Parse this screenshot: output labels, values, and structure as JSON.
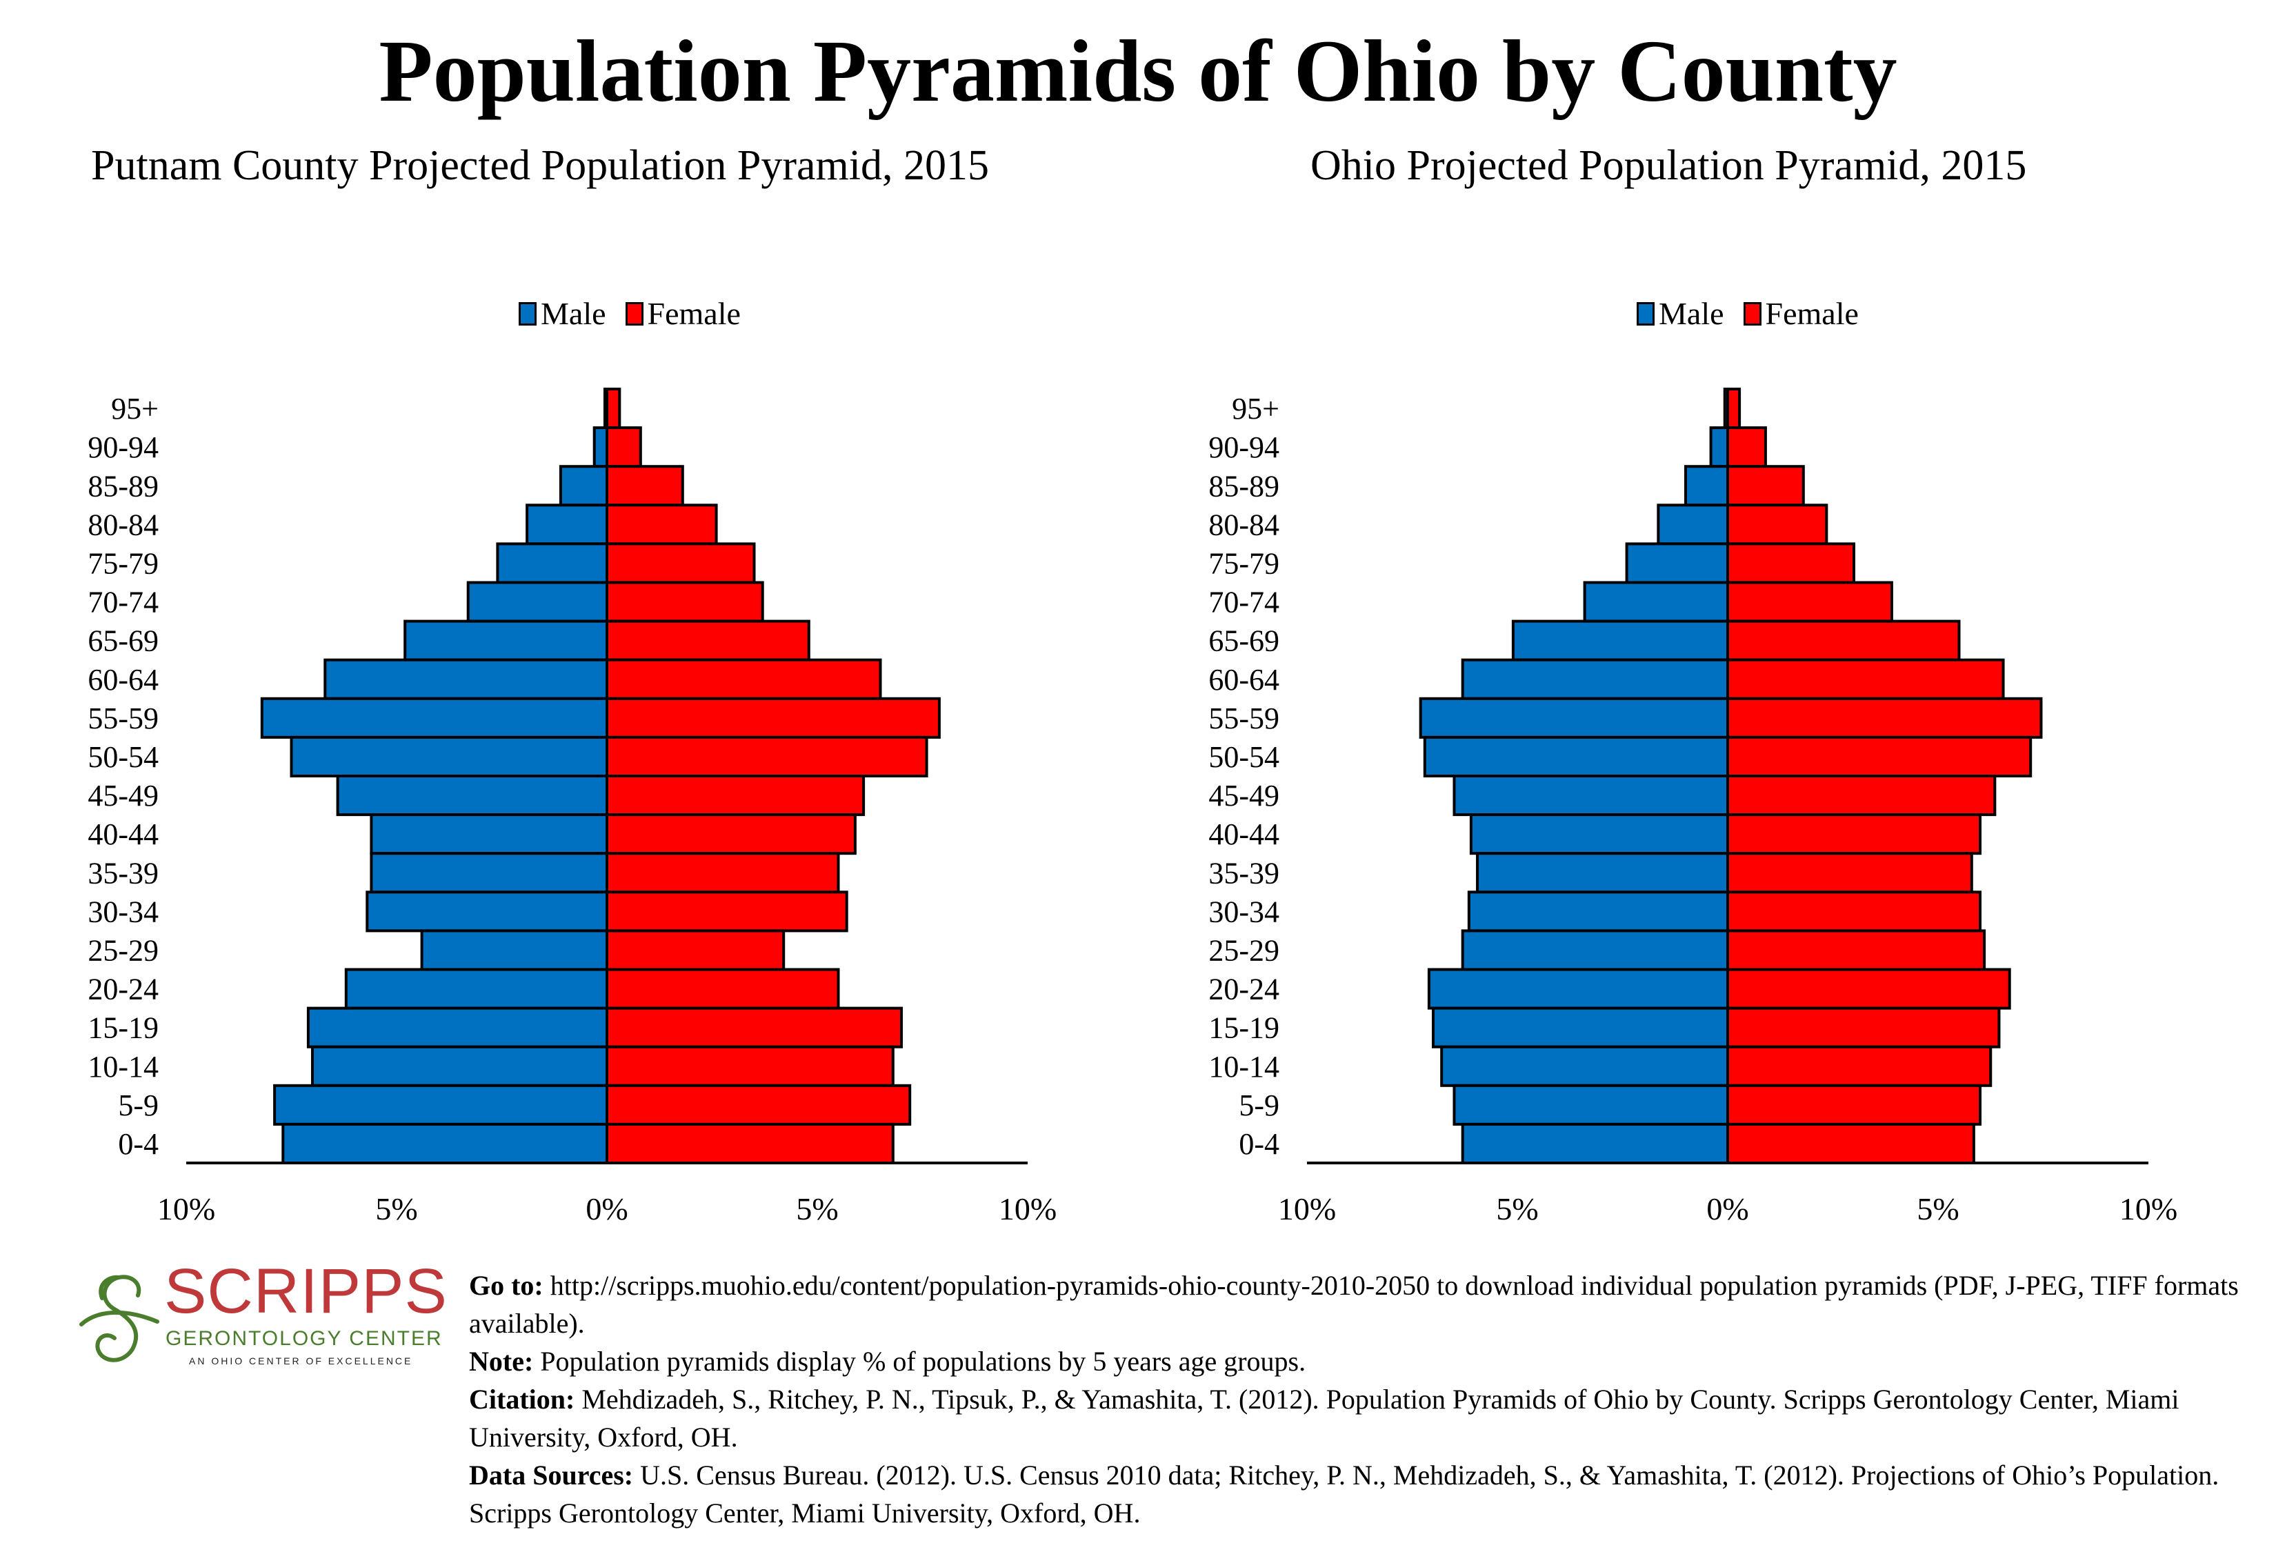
{
  "header": {
    "title": "Population Pyramids of Ohio by County"
  },
  "legend": {
    "male": "Male",
    "female": "Female"
  },
  "colors": {
    "male": "#0070c0",
    "female": "#ff0000",
    "outline": "#000000",
    "logo_red": "#c0393a",
    "logo_green": "#4a7d2c"
  },
  "chart_data": [
    {
      "type": "bar",
      "orientation": "horizontal-pyramid",
      "title": "Putnam County Projected Population Pyramid, 2015",
      "xlabel": "",
      "ylabel": "",
      "xlim": [
        -10,
        10
      ],
      "xticks": [
        "10%",
        "5%",
        "0%",
        "5%",
        "10%"
      ],
      "legend": [
        "Male",
        "Female"
      ],
      "legend_position": "top-center",
      "grid": false,
      "categories": [
        "95+",
        "90-94",
        "85-89",
        "80-84",
        "75-79",
        "70-74",
        "65-69",
        "60-64",
        "55-59",
        "50-54",
        "45-49",
        "40-44",
        "35-39",
        "30-34",
        "25-29",
        "20-24",
        "15-19",
        "10-14",
        "5-9",
        "0-4"
      ],
      "series": [
        {
          "name": "Male",
          "values": [
            0.05,
            0.3,
            1.1,
            1.9,
            2.6,
            3.3,
            4.8,
            6.7,
            8.2,
            7.5,
            6.4,
            5.6,
            5.6,
            5.7,
            4.4,
            6.2,
            7.1,
            7.0,
            7.9,
            7.7
          ]
        },
        {
          "name": "Female",
          "values": [
            0.3,
            0.8,
            1.8,
            2.6,
            3.5,
            3.7,
            4.8,
            6.5,
            7.9,
            7.6,
            6.1,
            5.9,
            5.5,
            5.7,
            4.2,
            5.5,
            7.0,
            6.8,
            7.2,
            6.8
          ]
        }
      ]
    },
    {
      "type": "bar",
      "orientation": "horizontal-pyramid",
      "title": "Ohio Projected Population Pyramid, 2015",
      "xlabel": "",
      "ylabel": "",
      "xlim": [
        -10,
        10
      ],
      "xticks": [
        "10%",
        "5%",
        "0%",
        "5%",
        "10%"
      ],
      "legend": [
        "Male",
        "Female"
      ],
      "legend_position": "top-center",
      "grid": false,
      "categories": [
        "95+",
        "90-94",
        "85-89",
        "80-84",
        "75-79",
        "70-74",
        "65-69",
        "60-64",
        "55-59",
        "50-54",
        "45-49",
        "40-44",
        "35-39",
        "30-34",
        "25-29",
        "20-24",
        "15-19",
        "10-14",
        "5-9",
        "0-4"
      ],
      "series": [
        {
          "name": "Male",
          "values": [
            0.07,
            0.4,
            1.0,
            1.65,
            2.4,
            3.4,
            5.1,
            6.3,
            7.3,
            7.2,
            6.5,
            6.1,
            5.95,
            6.15,
            6.3,
            7.1,
            7.0,
            6.8,
            6.5,
            6.3
          ]
        },
        {
          "name": "Female",
          "values": [
            0.28,
            0.9,
            1.8,
            2.35,
            3.0,
            3.9,
            5.5,
            6.55,
            7.45,
            7.2,
            6.35,
            6.0,
            5.8,
            6.0,
            6.1,
            6.7,
            6.45,
            6.25,
            6.0,
            5.85
          ]
        }
      ]
    }
  ],
  "logo": {
    "name": "SCRIPPS",
    "subtitle": "GERONTOLOGY CENTER",
    "tagline": "AN OHIO CENTER OF EXCELLENCE"
  },
  "footer": {
    "goto_label": "Go to:",
    "goto_text": "http://scripps.muohio.edu/content/population-pyramids-ohio-county-2010-2050 to download individual population pyramids (PDF, J-PEG, TIFF formats available).",
    "note_label": "Note:",
    "note_text": "Population pyramids display % of populations by 5 years age groups.",
    "citation_label": "Citation:",
    "citation_text": "Mehdizadeh, S., Ritchey, P. N., Tipsuk, P., & Yamashita, T. (2012). Population Pyramids of Ohio by County. Scripps Gerontology Center, Miami University, Oxford, OH.",
    "sources_label": "Data Sources:",
    "sources_text": "U.S. Census Bureau. (2012). U.S. Census 2010 data; Ritchey, P. N., Mehdizadeh, S., & Yamashita, T. (2012). Projections of Ohio’s Population. Scripps Gerontology Center, Miami University, Oxford, OH."
  }
}
